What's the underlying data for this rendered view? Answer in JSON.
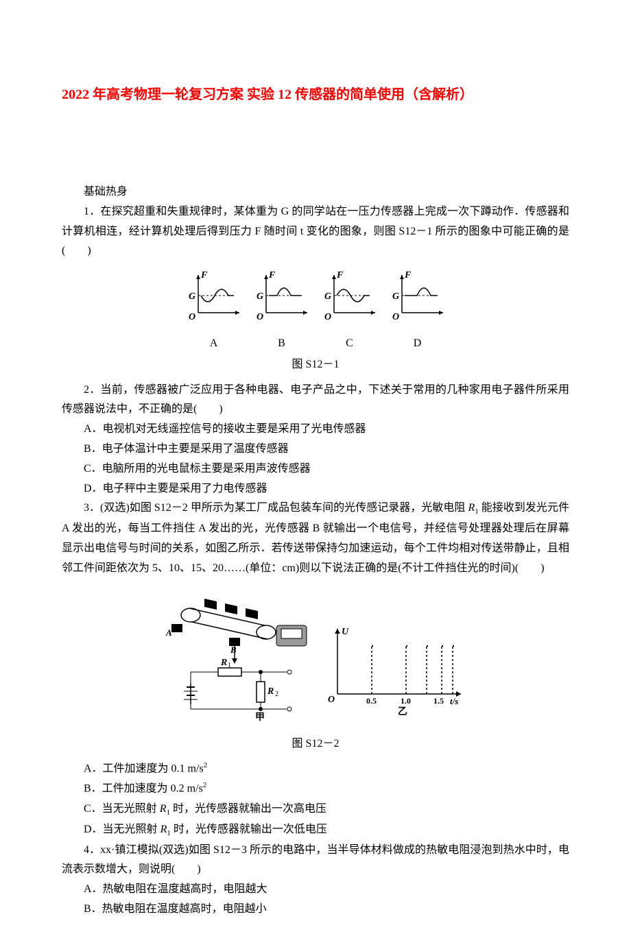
{
  "title": "2022 年高考物理一轮复习方案 实验 12 传感器的简单使用（含解析）",
  "section_label": "基础热身",
  "q1": {
    "stem": "1．在探究超重和失重规律时，某体重为 G 的同学站在一压力传感器上完成一次下蹲动作．传感器和计算机相连，经计算机处理后得到压力 F 随时间 t 变化的图象，则图 S12－1 所示的图象中可能正确的是(　　)",
    "options": [
      "A",
      "B",
      "C",
      "D"
    ],
    "caption": "图 S12－1"
  },
  "q2": {
    "stem": "2．当前，传感器被广泛应用于各种电器、电子产品之中，下述关于常用的几种家用电子器件所采用传感器说法中，不正确的是(　　)",
    "opts": {
      "a": "A．电视机对无线遥控信号的接收主要是采用了光电传感器",
      "b": "B．电子体温计中主要是采用了温度传感器",
      "c": "C．电脑所用的光电鼠标主要是采用声波传感器",
      "d": "D．电子秤中主要是采用了力电传感器"
    }
  },
  "q3": {
    "stem_1": "3．(双选)如图 S12－2 甲所示为某工厂成品包装车间的光传感记录器，光敏电阻 ",
    "r1_first": "R",
    "r1_sub": "1",
    "stem_2": " 能接收到发光元件 A 发出的光，每当工件挡住 A 发出的光，光传感器 B 就输出一个电信号，并经信号处理器处理后在屏幕显示出电信号与时间的关系，如图乙所示．若传送带保持匀加速运动，每个工件均相对传送带静止，且相邻工件间距依次为 5、10、15、20……(单位：cm)则以下说法正确的是(不计工件挡住光的时间)(　　)",
    "caption": "图 S12－2",
    "opts": {
      "a_pre": "A．工件加速度为 0.1 m/s",
      "a_sup": "2",
      "b_pre": "B．工件加速度为 0.2 m/s",
      "b_sup": "2",
      "c_pre": "C．当无光照射 ",
      "c_r": "R",
      "c_sub": "1",
      "c_post": " 时，光传感器就输出一次高电压",
      "d_pre": "D．当无光照射 ",
      "d_r": "R",
      "d_sub": "1",
      "d_post": " 时，光传感器就输出一次低电压"
    }
  },
  "q4": {
    "stem": "4．xx·镇江模拟(双选)如图 S12－3 所示的电路中，当半导体材料做成的热敏电阻浸泡到热水中时，电流表示数增大，则说明(　　)",
    "opts": {
      "a": "A．热敏电阻在温度越高时，电阻越大",
      "b": "B．热敏电阻在温度越高时，电阻越小"
    }
  },
  "fig_s12_1": {
    "axis_color": "#000000",
    "curve_color": "#000000",
    "F_label": "F",
    "G_label": "G",
    "O_label": "O",
    "italic_font": "italic 14px 'Times New Roman', serif",
    "bolditalic_font": "italic bold 14px 'Times New Roman', serif"
  },
  "fig_s12_2": {
    "left_labels": {
      "A": "A",
      "B": "B",
      "R1": "R",
      "R1_sub": "1",
      "R2": "R",
      "R2_sub": "2",
      "jia": "甲"
    },
    "right_labels": {
      "U": "U",
      "O": "O",
      "t": "t/s",
      "x05": "0.5",
      "x10": "1.0",
      "x15": "1.5",
      "yi": "乙"
    },
    "colors": {
      "stroke": "#000000",
      "fill_dark": "#000000",
      "fill_gray": "#9a9a9a"
    }
  }
}
